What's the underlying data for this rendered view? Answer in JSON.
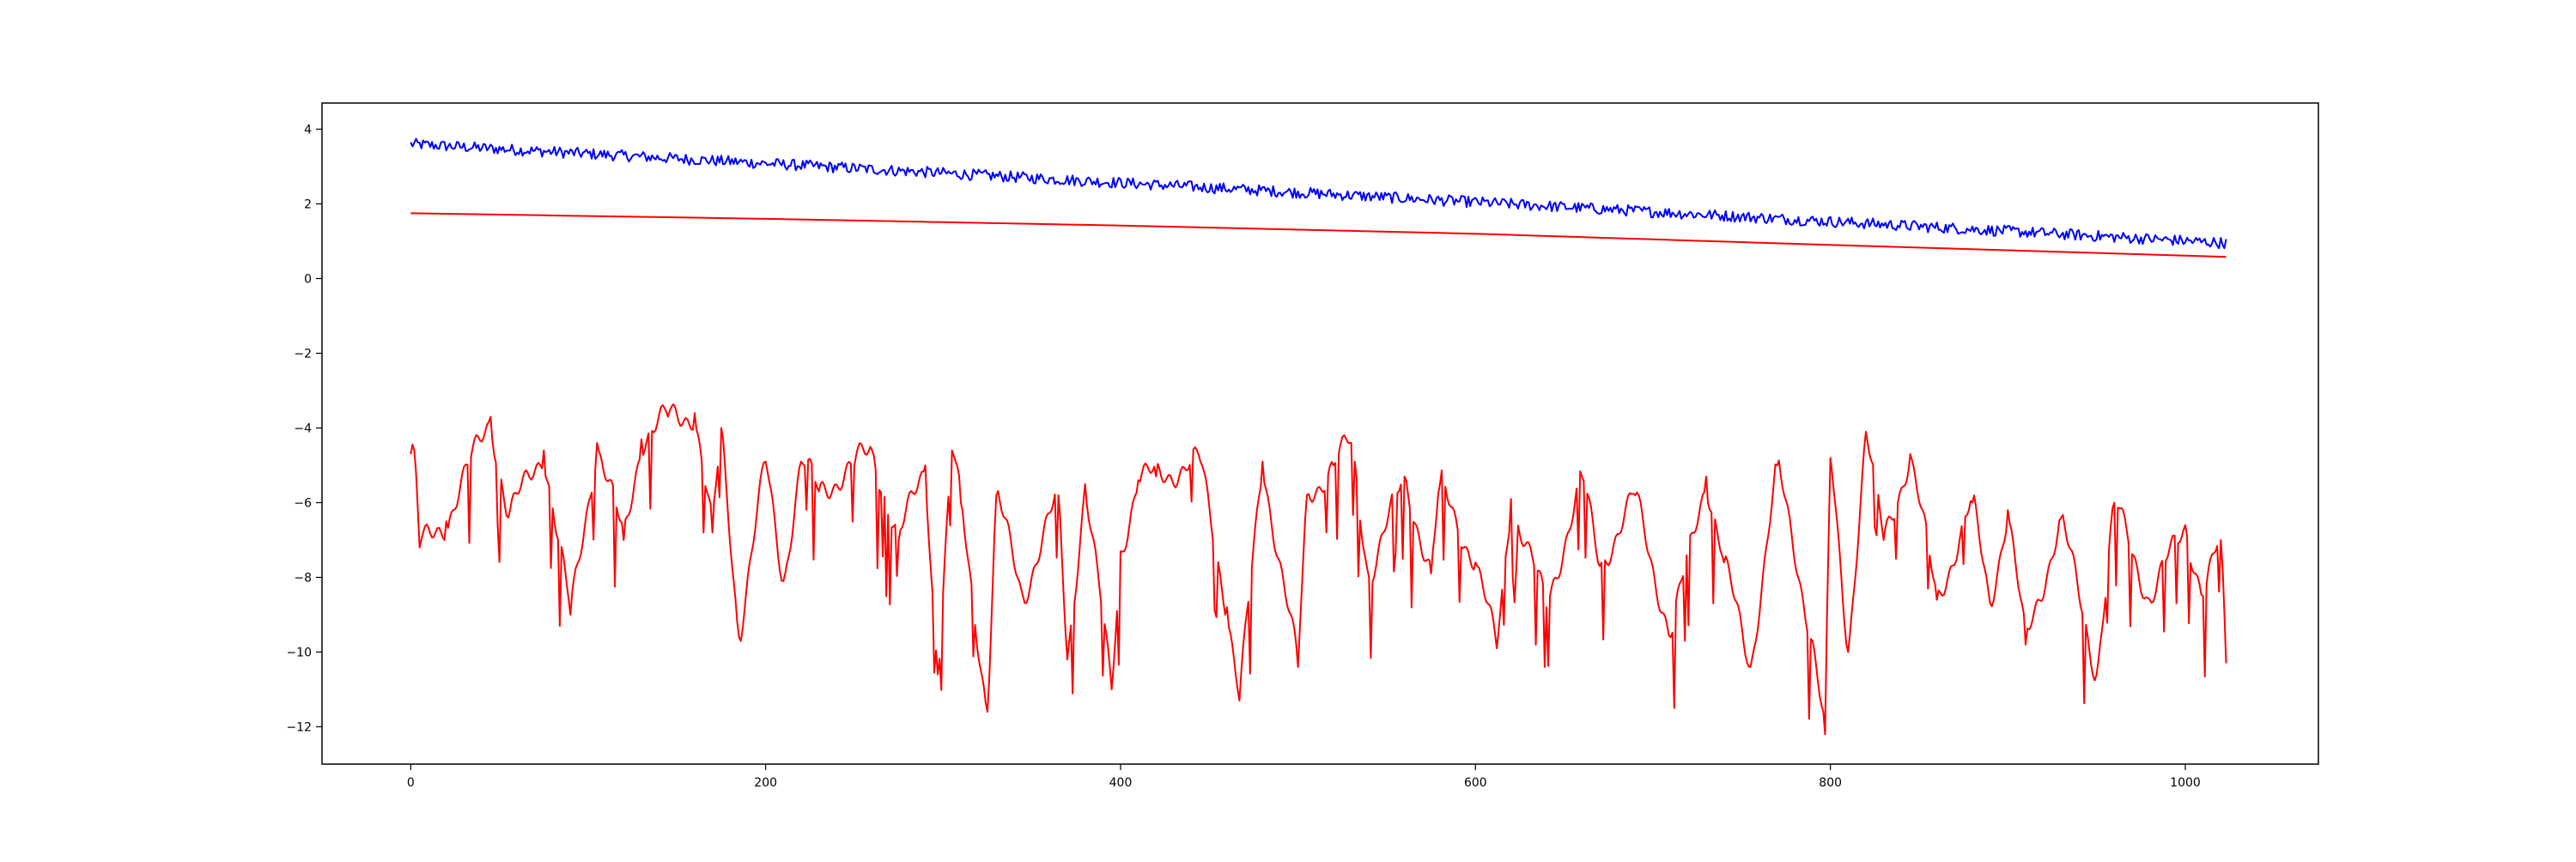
{
  "chart_data": {
    "type": "line",
    "title": "",
    "xlabel": "",
    "ylabel": "",
    "xlim": [
      -50,
      1075
    ],
    "ylim": [
      -13,
      4.7
    ],
    "x_ticks": [
      0,
      200,
      400,
      600,
      800,
      1000
    ],
    "y_ticks": [
      4,
      2,
      0,
      -2,
      -4,
      -6,
      -8,
      -10,
      -12
    ],
    "x_tick_labels": [
      "0",
      "200",
      "400",
      "600",
      "800",
      "1000"
    ],
    "y_tick_labels": [
      "4",
      "2",
      "0",
      "−2",
      "−4",
      "−6",
      "−8",
      "−10",
      "−12"
    ],
    "grid": false,
    "legend": "none",
    "n_points": 1024,
    "series": [
      {
        "color": "#0000ff",
        "style": "noisy-decreasing",
        "x": [
          0,
          1023
        ],
        "y": [
          3.6,
          0.95
        ],
        "noise_amplitude": 0.15
      },
      {
        "color": "#ff0000",
        "style": "smooth-decreasing",
        "x": [
          0,
          200,
          400,
          600,
          800,
          1023
        ],
        "y": [
          1.75,
          1.6,
          1.42,
          1.2,
          0.9,
          0.58
        ]
      },
      {
        "color": "#ff0000",
        "style": "spectrum",
        "x": [
          0,
          2,
          5,
          20,
          45,
          55,
          75,
          90,
          105,
          120,
          130,
          145,
          160,
          170,
          175,
          185,
          200,
          210,
          220,
          230,
          250,
          260,
          275,
          290,
          297,
          305,
          310,
          325,
          330,
          345,
          365,
          370,
          380,
          395,
          400,
          410,
          420,
          445,
          460,
          467,
          480,
          500,
          505,
          520,
          530,
          540,
          560,
          575,
          580,
          600,
          612,
          620,
          640,
          660,
          670,
          690,
          710,
          730,
          740,
          755,
          770,
          790,
          797,
          800,
          810,
          820,
          830,
          845,
          860,
          880,
          890,
          900,
          910,
          930,
          950,
          960,
          980,
          1000,
          1010,
          1020,
          1023
        ],
        "y": [
          -4.7,
          -4.6,
          -7.2,
          -6.5,
          -3.7,
          -6.4,
          -4.6,
          -9.0,
          -4.4,
          -7.0,
          -4.3,
          -3.7,
          -3.6,
          -6.8,
          -4.0,
          -9.6,
          -4.9,
          -8.1,
          -4.9,
          -5.7,
          -5.0,
          -4.6,
          -7.0,
          -5.0,
          -10.6,
          -4.6,
          -6.0,
          -11.6,
          -5.8,
          -8.5,
          -5.8,
          -10.2,
          -5.5,
          -11.0,
          -7.3,
          -5.4,
          -5.3,
          -4.9,
          -8.8,
          -11.3,
          -4.9,
          -10.4,
          -5.8,
          -5.0,
          -4.4,
          -8.0,
          -5.3,
          -7.9,
          -5.5,
          -7.6,
          -9.9,
          -5.9,
          -8.8,
          -5.3,
          -7.7,
          -5.8,
          -9.6,
          -5.3,
          -7.6,
          -10.4,
          -5.0,
          -9.7,
          -12.2,
          -4.8,
          -10.0,
          -4.1,
          -7.0,
          -4.7,
          -8.6,
          -6.0,
          -8.7,
          -6.2,
          -9.8,
          -6.4,
          -10.6,
          -6.0,
          -8.6,
          -6.6,
          -8.5,
          -7.0,
          -10.3
        ]
      }
    ]
  }
}
